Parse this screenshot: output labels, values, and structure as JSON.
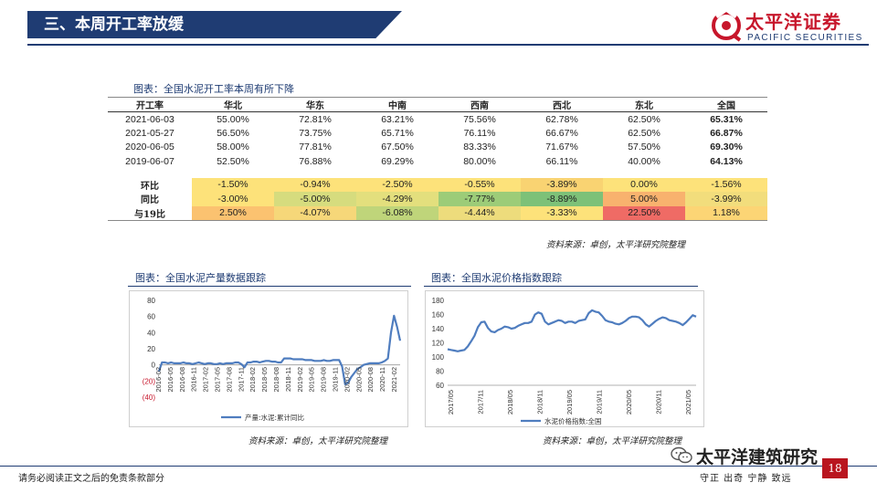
{
  "header": {
    "title": "三、本周开工率放缓",
    "logo_cn": "太平洋证券",
    "logo_en": "PACIFIC SECURITIES"
  },
  "table": {
    "caption": "图表：全国水泥开工率本周有所下降",
    "headers": [
      "开工率",
      "华北",
      "华东",
      "中南",
      "西南",
      "西北",
      "东北",
      "全国"
    ],
    "rows": [
      [
        "2021-06-03",
        "55.00%",
        "72.81%",
        "63.21%",
        "75.56%",
        "62.78%",
        "62.50%",
        "65.31%"
      ],
      [
        "2021-05-27",
        "56.50%",
        "73.75%",
        "65.71%",
        "76.11%",
        "66.67%",
        "62.50%",
        "66.87%"
      ],
      [
        "2020-06-05",
        "58.00%",
        "77.81%",
        "67.50%",
        "83.33%",
        "71.67%",
        "57.50%",
        "69.30%"
      ],
      [
        "2019-06-07",
        "52.50%",
        "76.88%",
        "69.29%",
        "80.00%",
        "66.11%",
        "40.00%",
        "64.13%"
      ]
    ],
    "change_rows": [
      {
        "label": "环比",
        "values": [
          "-1.50%",
          "-0.94%",
          "-2.50%",
          "-0.55%",
          "-3.89%",
          "0.00%",
          "-1.56%"
        ],
        "colors": [
          "#fde27a",
          "#fde27a",
          "#fde27a",
          "#fde27a",
          "#f9d372",
          "#fde27a",
          "#fde27a"
        ]
      },
      {
        "label": "同比",
        "values": [
          "-3.00%",
          "-5.00%",
          "-4.29%",
          "-7.77%",
          "-8.89%",
          "5.00%",
          "-3.99%"
        ],
        "colors": [
          "#fde27a",
          "#d6dc7e",
          "#e3df7d",
          "#9ccc78",
          "#7dc178",
          "#f8b26e",
          "#f2dd7c"
        ]
      },
      {
        "label": "与19比",
        "values": [
          "2.50%",
          "-4.07%",
          "-6.08%",
          "-4.44%",
          "-3.33%",
          "22.50%",
          "1.18%"
        ],
        "colors": [
          "#fbc270",
          "#f6d779",
          "#bfd57a",
          "#eddc7c",
          "#fde27a",
          "#ef6b65",
          "#fcd575"
        ]
      }
    ],
    "source": "资料来源：卓创，太平洋研究院整理"
  },
  "left_chart": {
    "title": "图表：全国水泥产量数据跟踪",
    "source": "资料来源：卓创，太平洋研究院整理"
  },
  "right_chart": {
    "title": "图表：全国水泥价格指数跟踪",
    "source": "资料来源：卓创，太平洋研究院整理"
  },
  "chart_data": [
    {
      "type": "line",
      "title": "",
      "series": [
        {
          "name": "产量:水泥:累计同比",
          "values": [
            -8,
            3,
            3,
            2,
            3,
            2,
            2,
            2,
            3,
            2,
            2,
            1,
            2,
            3,
            2,
            1,
            2,
            2,
            1,
            1,
            2,
            1,
            2,
            2,
            2,
            3,
            3,
            1,
            -3,
            3,
            3,
            4,
            4,
            3,
            4,
            5,
            5,
            4,
            4,
            3,
            3,
            8,
            8,
            8,
            7,
            7,
            7,
            7,
            6,
            6,
            6,
            5,
            5,
            5,
            6,
            5,
            5,
            6,
            6,
            6,
            -2,
            -24,
            -22,
            -15,
            -10,
            -5,
            -3,
            0,
            1,
            2,
            2,
            2,
            2,
            3,
            5,
            8,
            40,
            61,
            47,
            30
          ]
        }
      ],
      "x_tick_labels": [
        "2016-02",
        "2016-05",
        "2016-08",
        "2016-11",
        "2017-02",
        "2017-05",
        "2017-08",
        "2017-11",
        "2018-02",
        "2018-05",
        "2018-08",
        "2018-11",
        "2019-02",
        "2019-05",
        "2019-08",
        "2019-11",
        "2020-02",
        "2020-05",
        "2020-08",
        "2020-11",
        "2021-02"
      ],
      "y_ticks": [
        "80",
        "60",
        "40",
        "20",
        "0",
        "(20)",
        "(40)"
      ],
      "ylim": [
        -40,
        80
      ],
      "color": "#4f7dbf"
    },
    {
      "type": "line",
      "title": "",
      "series": [
        {
          "name": "水泥价格指数:全国",
          "values": [
            111,
            110,
            109,
            108,
            109,
            110,
            115,
            122,
            130,
            142,
            149,
            150,
            141,
            136,
            135,
            138,
            140,
            143,
            142,
            140,
            141,
            144,
            146,
            148,
            148,
            150,
            160,
            163,
            161,
            150,
            146,
            148,
            150,
            152,
            151,
            148,
            150,
            150,
            148,
            151,
            152,
            153,
            162,
            166,
            164,
            163,
            158,
            152,
            150,
            149,
            147,
            146,
            148,
            151,
            155,
            157,
            157,
            156,
            152,
            146,
            143,
            147,
            151,
            154,
            156,
            155,
            152,
            151,
            150,
            148,
            145,
            149,
            154,
            159,
            157
          ]
        }
      ],
      "x_tick_labels": [
        "2017/05",
        "2017/11",
        "2018/05",
        "2018/11",
        "2019/05",
        "2019/11",
        "2020/05",
        "2020/11",
        "2021/05"
      ],
      "y_ticks": [
        "180",
        "160",
        "140",
        "120",
        "100",
        "80",
        "60"
      ],
      "ylim": [
        60,
        180
      ],
      "color": "#4f7dbf"
    }
  ],
  "footer": {
    "left": "请务必阅读正文之后的免责条款部分",
    "right": "守正 出奇 宁静 致远",
    "page": "18",
    "watermark": "太平洋建筑研究"
  }
}
